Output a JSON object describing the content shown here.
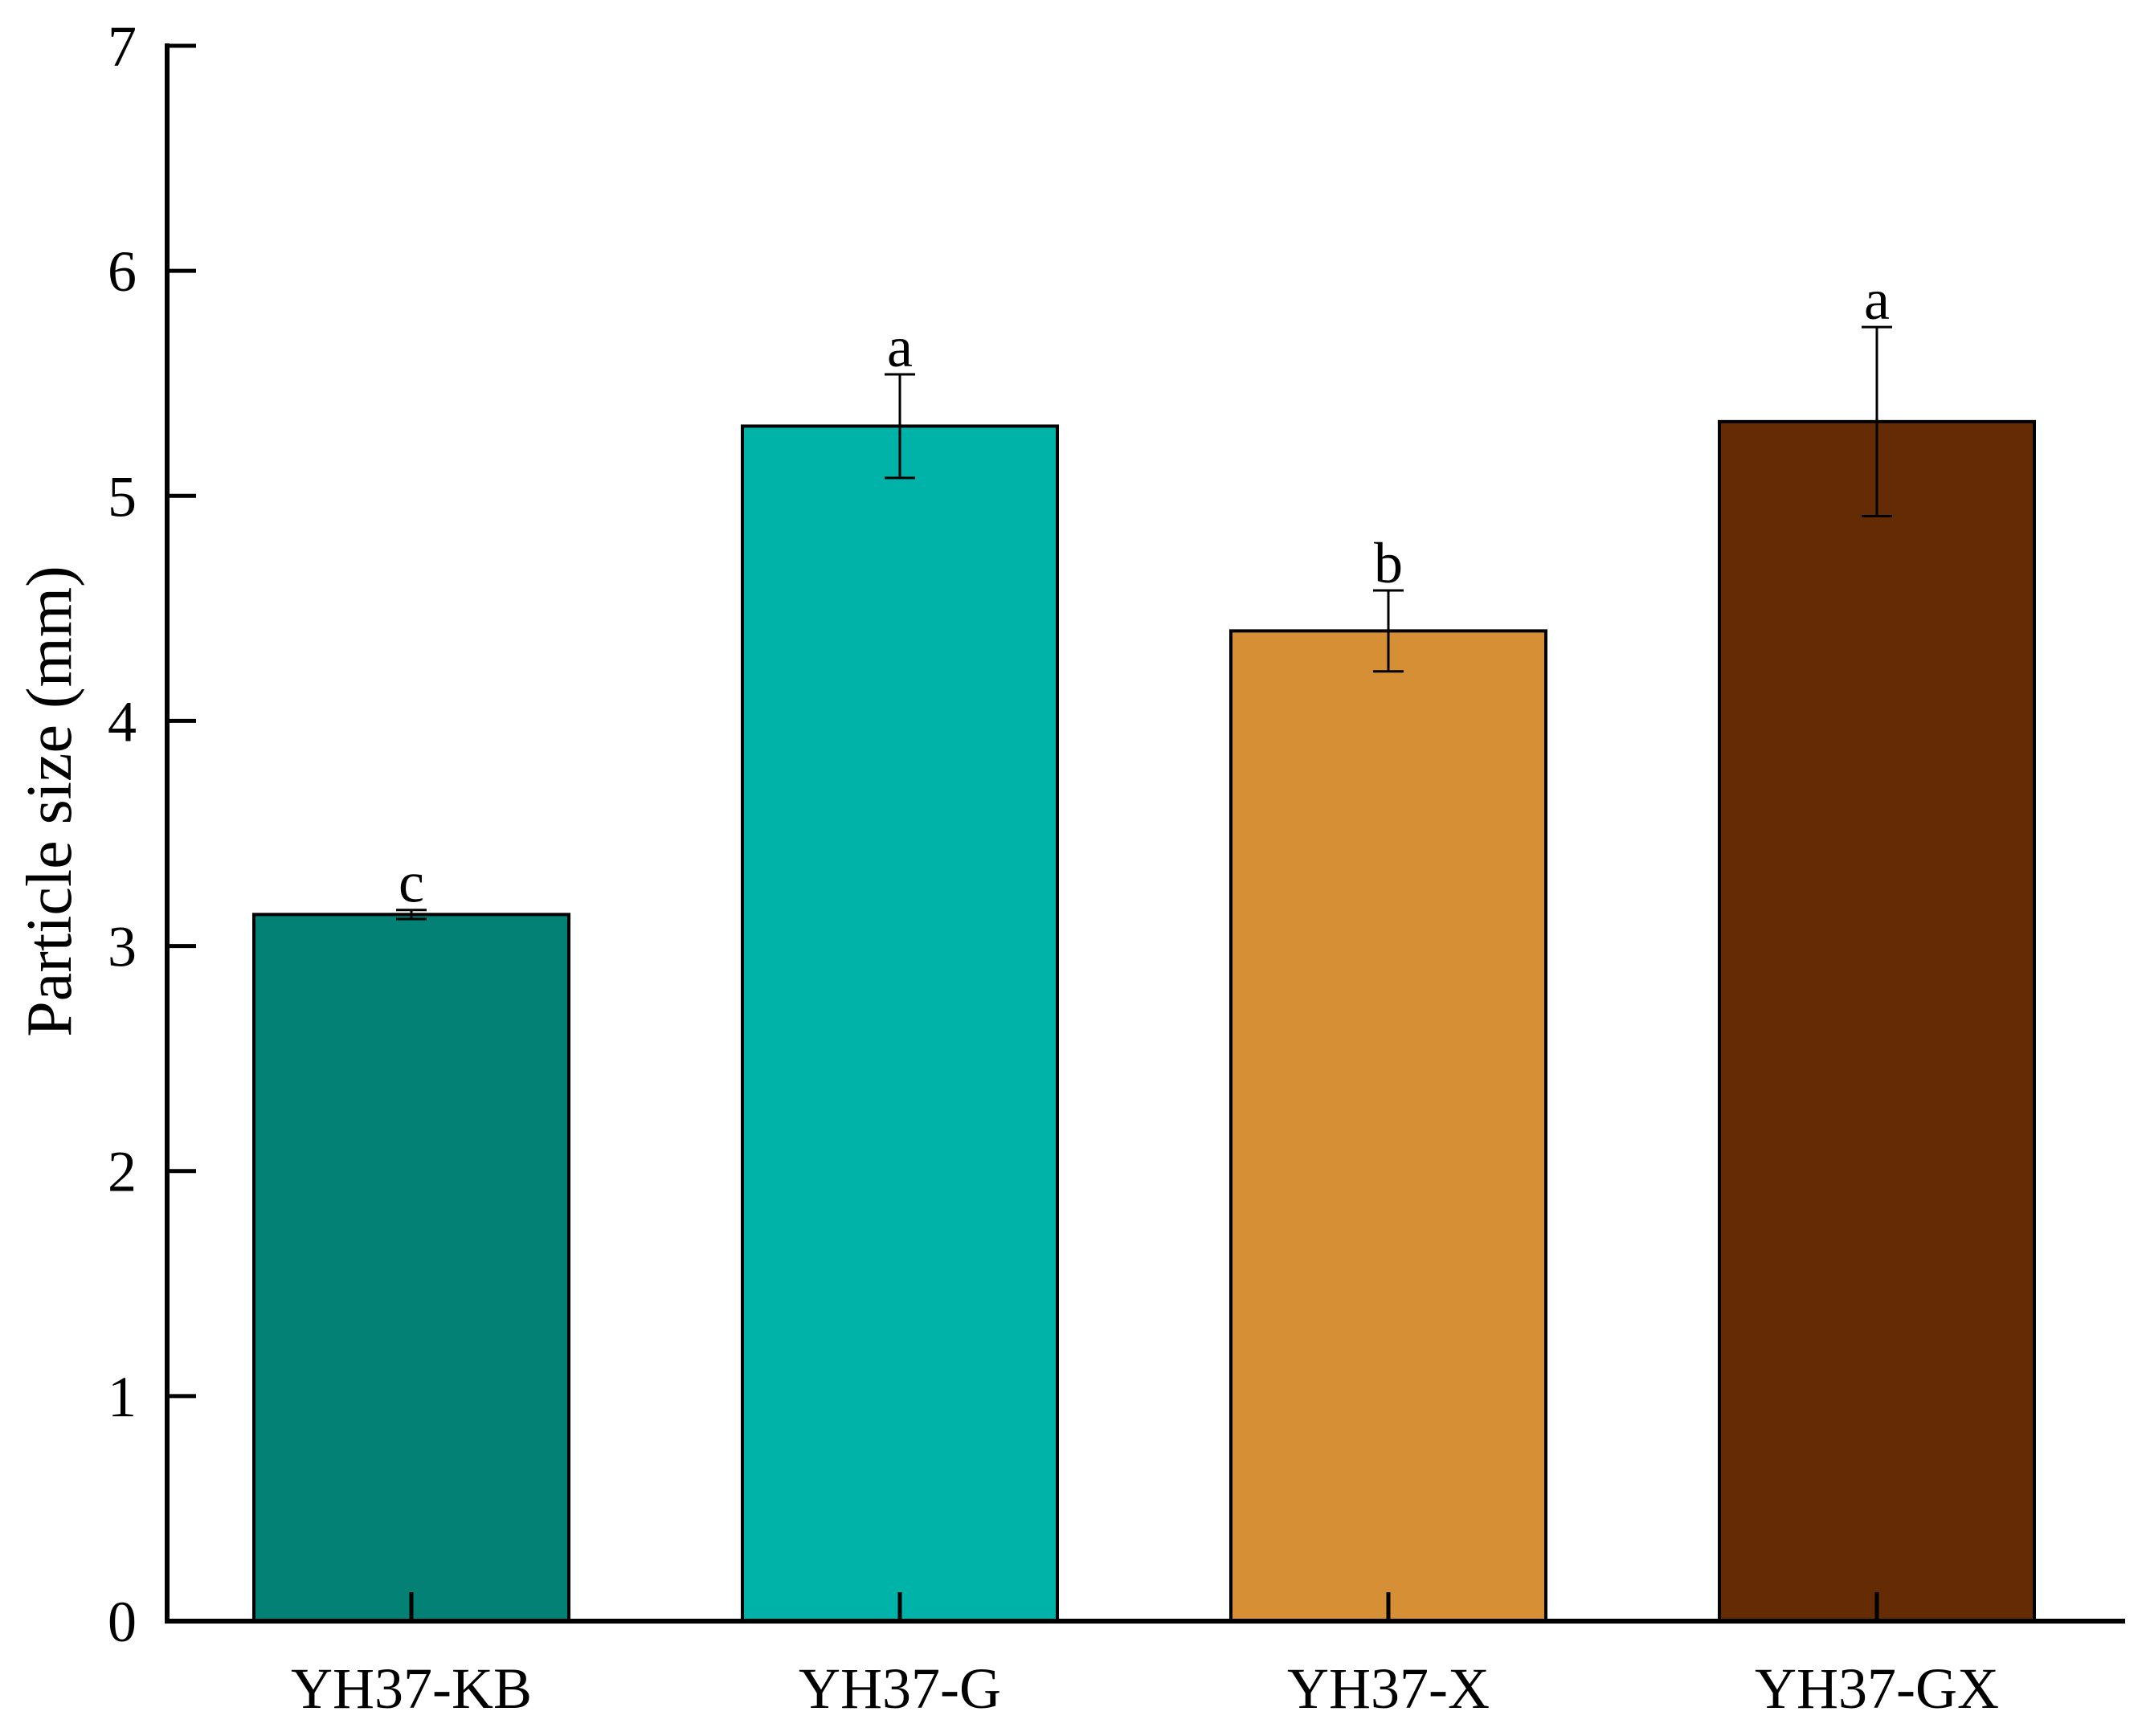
{
  "chart_data": {
    "type": "bar",
    "title": "",
    "xlabel": "",
    "ylabel": "Particle size (mm)",
    "ylim": [
      0,
      7
    ],
    "yticks": [
      0,
      1,
      2,
      3,
      4,
      5,
      6,
      7
    ],
    "grid": false,
    "categories": [
      "YH37-KB",
      "YH37-G",
      "YH37-X",
      "YH37-GX"
    ],
    "values": [
      3.14,
      5.31,
      4.4,
      5.33
    ],
    "errors": [
      0.02,
      0.23,
      0.18,
      0.42
    ],
    "significance": [
      "c",
      "a",
      "b",
      "a"
    ],
    "colors": [
      "#028174",
      "#00B3A8",
      "#D68F35",
      "#652B04"
    ]
  }
}
